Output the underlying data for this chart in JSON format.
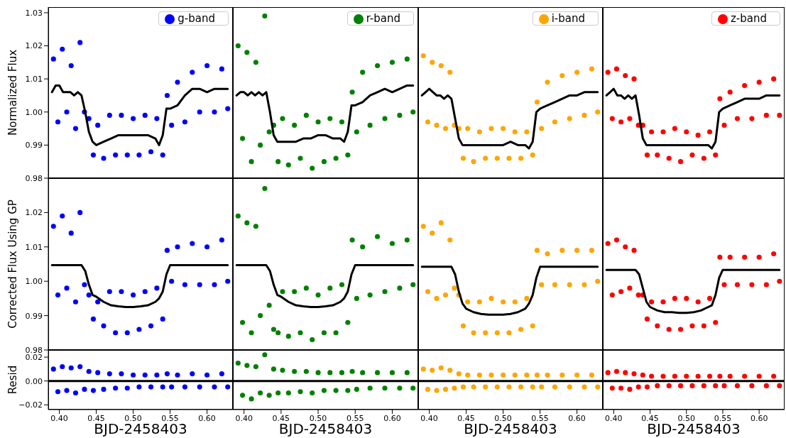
{
  "chart_data": [
    {
      "type": "scatter",
      "ylabel": "Normalized Flux",
      "xlim": [
        0.385,
        0.635
      ],
      "xticks": [
        {
          "value": 0.4,
          "label": null
        },
        {
          "value": 0.45,
          "label": null
        },
        {
          "value": 0.5,
          "label": null
        },
        {
          "value": 0.55,
          "label": null
        },
        {
          "value": 0.6,
          "label": null
        }
      ],
      "ylim": [
        0.98,
        1.0317
      ],
      "yticks": [
        0.98,
        0.99,
        {
          "value": 1,
          "label": "1.00"
        },
        1.01,
        1.02,
        1.03
      ],
      "tick_labels": "y",
      "legend": "top right",
      "marker": "circle",
      "series": [
        {
          "name": "g-band",
          "color": "#0000ff",
          "x": [
            0.392,
            0.398,
            0.404,
            0.41,
            0.416,
            0.422,
            0.428,
            0.434,
            0.44,
            0.446,
            0.452,
            0.46,
            0.468,
            0.476,
            0.484,
            0.492,
            0.5,
            0.508,
            0.516,
            0.524,
            0.532,
            0.54,
            0.546,
            0.552,
            0.56,
            0.57,
            0.58,
            0.59,
            0.6,
            0.61,
            0.62,
            0.628
          ],
          "values": [
            1.016,
            0.997,
            1.019,
            1.0,
            1.014,
            0.995,
            1.021,
            1.0,
            0.998,
            0.987,
            0.996,
            0.986,
            0.999,
            0.987,
            0.999,
            0.987,
            0.998,
            0.987,
            0.999,
            0.988,
            0.998,
            0.987,
            1.005,
            0.996,
            1.009,
            0.997,
            1.012,
            1.0,
            1.014,
            1.0,
            1.013,
            1.001
          ]
        },
        {
          "type": "line",
          "marker": "none",
          "color": "#000000",
          "x": [
            0.39,
            0.395,
            0.4,
            0.405,
            0.41,
            0.415,
            0.42,
            0.425,
            0.43,
            0.435,
            0.44,
            0.445,
            0.45,
            0.46,
            0.47,
            0.48,
            0.49,
            0.5,
            0.51,
            0.52,
            0.53,
            0.535,
            0.54,
            0.545,
            0.55,
            0.56,
            0.57,
            0.58,
            0.59,
            0.6,
            0.61,
            0.62,
            0.628
          ],
          "values": [
            1.006,
            1.008,
            1.008,
            1.006,
            1.006,
            1.006,
            1.005,
            1.006,
            1.005,
            1.0,
            0.994,
            0.991,
            0.99,
            0.991,
            0.992,
            0.993,
            0.993,
            0.993,
            0.993,
            0.993,
            0.992,
            0.99,
            0.993,
            1.001,
            1.001,
            1.002,
            1.005,
            1.007,
            1.007,
            1.006,
            1.007,
            1.007,
            1.007
          ]
        }
      ]
    },
    {
      "type": "scatter",
      "xlim": [
        0.385,
        0.635
      ],
      "xticks": [
        {
          "value": 0.4,
          "label": null
        },
        {
          "value": 0.45,
          "label": null
        },
        {
          "value": 0.5,
          "label": null
        },
        {
          "value": 0.55,
          "label": null
        },
        {
          "value": 0.6,
          "label": null
        }
      ],
      "ylim": [
        0.98,
        1.0317
      ],
      "yticks": [
        {
          "value": 0.98,
          "label": null
        },
        {
          "value": 0.99,
          "label": null
        },
        {
          "value": 1,
          "label": null
        },
        {
          "value": 1.01,
          "label": null
        },
        {
          "value": 1.02,
          "label": null
        },
        {
          "value": 1.03,
          "label": null
        }
      ],
      "tick_labels": false,
      "legend": "top right",
      "marker": "circle",
      "series": [
        {
          "name": "r-band",
          "color": "#008000",
          "x": [
            0.392,
            0.398,
            0.404,
            0.41,
            0.416,
            0.422,
            0.428,
            0.434,
            0.44,
            0.446,
            0.452,
            0.46,
            0.468,
            0.476,
            0.484,
            0.492,
            0.5,
            0.508,
            0.516,
            0.524,
            0.532,
            0.54,
            0.546,
            0.552,
            0.56,
            0.57,
            0.58,
            0.59,
            0.6,
            0.61,
            0.62,
            0.628
          ],
          "values": [
            1.02,
            0.992,
            1.018,
            0.985,
            1.015,
            0.99,
            1.029,
            0.994,
            0.996,
            0.985,
            0.998,
            0.984,
            0.996,
            0.986,
            0.999,
            0.983,
            0.997,
            0.985,
            0.998,
            0.986,
            0.997,
            0.987,
            1.006,
            0.994,
            1.012,
            0.996,
            1.014,
            0.998,
            1.015,
            0.999,
            1.016,
            1.0
          ]
        },
        {
          "type": "line",
          "marker": "none",
          "color": "#000000",
          "x": [
            0.39,
            0.395,
            0.4,
            0.405,
            0.41,
            0.415,
            0.42,
            0.425,
            0.43,
            0.435,
            0.44,
            0.445,
            0.45,
            0.46,
            0.47,
            0.48,
            0.49,
            0.5,
            0.51,
            0.52,
            0.53,
            0.535,
            0.54,
            0.545,
            0.55,
            0.56,
            0.57,
            0.58,
            0.59,
            0.6,
            0.61,
            0.62,
            0.628
          ],
          "values": [
            1.005,
            1.006,
            1.006,
            1.005,
            1.006,
            1.005,
            1.006,
            1.005,
            1.006,
            1.0,
            0.993,
            0.991,
            0.991,
            0.991,
            0.991,
            0.992,
            0.992,
            0.993,
            0.993,
            0.992,
            0.992,
            0.991,
            0.994,
            1.002,
            1.002,
            1.003,
            1.005,
            1.006,
            1.007,
            1.006,
            1.007,
            1.008,
            1.008
          ]
        }
      ]
    },
    {
      "type": "scatter",
      "xlim": [
        0.385,
        0.635
      ],
      "xticks": [
        {
          "value": 0.4,
          "label": null
        },
        {
          "value": 0.45,
          "label": null
        },
        {
          "value": 0.5,
          "label": null
        },
        {
          "value": 0.55,
          "label": null
        },
        {
          "value": 0.6,
          "label": null
        }
      ],
      "ylim": [
        0.98,
        1.0317
      ],
      "yticks": [
        {
          "value": 0.98,
          "label": null
        },
        {
          "value": 0.99,
          "label": null
        },
        {
          "value": 1,
          "label": null
        },
        {
          "value": 1.01,
          "label": null
        },
        {
          "value": 1.02,
          "label": null
        },
        {
          "value": 1.03,
          "label": null
        }
      ],
      "tick_labels": false,
      "legend": "top right",
      "marker": "circle",
      "series": [
        {
          "name": "i-band",
          "color": "#ffa500",
          "x": [
            0.392,
            0.398,
            0.404,
            0.41,
            0.416,
            0.422,
            0.428,
            0.434,
            0.44,
            0.446,
            0.452,
            0.46,
            0.468,
            0.476,
            0.484,
            0.492,
            0.5,
            0.508,
            0.516,
            0.524,
            0.532,
            0.54,
            0.546,
            0.552,
            0.56,
            0.57,
            0.58,
            0.59,
            0.6,
            0.61,
            0.62,
            0.628
          ],
          "values": [
            1.017,
            0.997,
            1.015,
            0.996,
            1.014,
            0.995,
            1.012,
            0.996,
            0.995,
            0.986,
            0.995,
            0.985,
            0.994,
            0.986,
            0.995,
            0.986,
            0.995,
            0.986,
            0.994,
            0.986,
            0.994,
            0.987,
            1.003,
            0.995,
            1.009,
            0.997,
            1.011,
            0.998,
            1.012,
            0.999,
            1.013,
            1.0
          ]
        },
        {
          "type": "line",
          "marker": "none",
          "color": "#000000",
          "x": [
            0.39,
            0.395,
            0.4,
            0.405,
            0.41,
            0.415,
            0.42,
            0.425,
            0.43,
            0.435,
            0.44,
            0.445,
            0.45,
            0.46,
            0.47,
            0.48,
            0.49,
            0.5,
            0.51,
            0.52,
            0.53,
            0.535,
            0.54,
            0.545,
            0.55,
            0.56,
            0.57,
            0.58,
            0.59,
            0.6,
            0.61,
            0.62,
            0.628
          ],
          "values": [
            1.005,
            1.006,
            1.007,
            1.006,
            1.005,
            1.005,
            1.004,
            1.005,
            1.004,
            0.998,
            0.992,
            0.99,
            0.99,
            0.99,
            0.99,
            0.99,
            0.99,
            0.99,
            0.991,
            0.99,
            0.99,
            0.989,
            0.991,
            1.0,
            1.001,
            1.002,
            1.003,
            1.004,
            1.005,
            1.005,
            1.006,
            1.006,
            1.006
          ]
        }
      ]
    },
    {
      "type": "scatter",
      "xlim": [
        0.385,
        0.635
      ],
      "xticks": [
        {
          "value": 0.4,
          "label": null
        },
        {
          "value": 0.45,
          "label": null
        },
        {
          "value": 0.5,
          "label": null
        },
        {
          "value": 0.55,
          "label": null
        },
        {
          "value": 0.6,
          "label": null
        }
      ],
      "ylim": [
        0.98,
        1.0317
      ],
      "yticks": [
        {
          "value": 0.98,
          "label": null
        },
        {
          "value": 0.99,
          "label": null
        },
        {
          "value": 1,
          "label": null
        },
        {
          "value": 1.01,
          "label": null
        },
        {
          "value": 1.02,
          "label": null
        },
        {
          "value": 1.03,
          "label": null
        }
      ],
      "tick_labels": false,
      "legend": "top right",
      "marker": "circle",
      "series": [
        {
          "name": "z-band",
          "color": "#ff0000",
          "x": [
            0.392,
            0.398,
            0.404,
            0.41,
            0.416,
            0.422,
            0.428,
            0.434,
            0.44,
            0.446,
            0.452,
            0.46,
            0.468,
            0.476,
            0.484,
            0.492,
            0.5,
            0.508,
            0.516,
            0.524,
            0.532,
            0.54,
            0.546,
            0.552,
            0.56,
            0.57,
            0.58,
            0.59,
            0.6,
            0.61,
            0.62,
            0.628
          ],
          "values": [
            1.012,
            0.998,
            1.013,
            0.997,
            1.011,
            0.998,
            1.01,
            0.996,
            0.996,
            0.987,
            0.994,
            0.987,
            0.994,
            0.986,
            0.995,
            0.985,
            0.994,
            0.987,
            0.993,
            0.986,
            0.994,
            0.987,
            1.004,
            0.996,
            1.006,
            0.998,
            1.008,
            0.998,
            1.009,
            0.999,
            1.01,
            0.999
          ]
        },
        {
          "type": "line",
          "marker": "none",
          "color": "#000000",
          "x": [
            0.39,
            0.395,
            0.4,
            0.405,
            0.41,
            0.415,
            0.42,
            0.425,
            0.43,
            0.435,
            0.44,
            0.445,
            0.45,
            0.46,
            0.47,
            0.48,
            0.49,
            0.5,
            0.51,
            0.52,
            0.53,
            0.535,
            0.54,
            0.545,
            0.55,
            0.56,
            0.57,
            0.58,
            0.59,
            0.6,
            0.61,
            0.62,
            0.628
          ],
          "values": [
            1.005,
            1.006,
            1.007,
            1.005,
            1.005,
            1.004,
            1.005,
            1.004,
            1.005,
            0.999,
            0.992,
            0.99,
            0.99,
            0.99,
            0.99,
            0.99,
            0.99,
            0.99,
            0.99,
            0.99,
            0.99,
            0.989,
            0.991,
            1.0,
            1.001,
            1.002,
            1.003,
            1.004,
            1.004,
            1.004,
            1.005,
            1.005,
            1.005
          ]
        }
      ]
    },
    {
      "type": "scatter",
      "ylabel": "Corrected Flux Using GP",
      "xlim": [
        0.385,
        0.635
      ],
      "xticks": [
        {
          "value": 0.4,
          "label": null
        },
        {
          "value": 0.45,
          "label": null
        },
        {
          "value": 0.5,
          "label": null
        },
        {
          "value": 0.55,
          "label": null
        },
        {
          "value": 0.6,
          "label": null
        }
      ],
      "ylim": [
        0.98,
        1.03
      ],
      "yticks": [
        0.98,
        0.99,
        {
          "value": 1,
          "label": "1.00"
        },
        1.01,
        1.02
      ],
      "tick_labels": "y",
      "marker": "circle",
      "series": [
        {
          "color": "#0000ff",
          "x": [
            0.392,
            0.398,
            0.404,
            0.41,
            0.416,
            0.422,
            0.428,
            0.434,
            0.44,
            0.446,
            0.452,
            0.46,
            0.468,
            0.476,
            0.484,
            0.492,
            0.5,
            0.508,
            0.516,
            0.524,
            0.532,
            0.54,
            0.546,
            0.552,
            0.56,
            0.57,
            0.58,
            0.59,
            0.6,
            0.61,
            0.62,
            0.628
          ],
          "values": [
            1.016,
            0.996,
            1.019,
            0.998,
            1.014,
            0.994,
            1.02,
            0.999,
            0.996,
            0.989,
            0.994,
            0.987,
            0.997,
            0.985,
            0.997,
            0.985,
            0.996,
            0.986,
            0.997,
            0.987,
            0.998,
            0.989,
            1.009,
            1.0,
            1.01,
            0.999,
            1.011,
            0.999,
            1.01,
            0.999,
            1.012,
            1.0
          ]
        },
        {
          "type": "line",
          "marker": "none",
          "color": "#000000",
          "x": [
            0.39,
            0.43,
            0.435,
            0.44,
            0.445,
            0.45,
            0.46,
            0.47,
            0.48,
            0.49,
            0.5,
            0.51,
            0.52,
            0.53,
            0.535,
            0.54,
            0.545,
            0.55,
            0.628
          ],
          "values": [
            1.0047,
            1.0047,
            1.003,
            0.999,
            0.996,
            0.9955,
            0.994,
            0.993,
            0.9927,
            0.9925,
            0.9925,
            0.9927,
            0.993,
            0.994,
            0.995,
            0.997,
            1.002,
            1.0047,
            1.0047
          ]
        }
      ]
    },
    {
      "type": "scatter",
      "xlim": [
        0.385,
        0.635
      ],
      "xticks": [
        {
          "value": 0.4,
          "label": null
        },
        {
          "value": 0.45,
          "label": null
        },
        {
          "value": 0.5,
          "label": null
        },
        {
          "value": 0.55,
          "label": null
        },
        {
          "value": 0.6,
          "label": null
        }
      ],
      "ylim": [
        0.98,
        1.03
      ],
      "yticks": [
        {
          "value": 0.98,
          "label": null
        },
        {
          "value": 0.99,
          "label": null
        },
        {
          "value": 1,
          "label": null
        },
        {
          "value": 1.01,
          "label": null
        },
        {
          "value": 1.02,
          "label": null
        }
      ],
      "tick_labels": false,
      "marker": "circle",
      "series": [
        {
          "color": "#008000",
          "x": [
            0.392,
            0.398,
            0.404,
            0.41,
            0.416,
            0.422,
            0.428,
            0.434,
            0.44,
            0.446,
            0.452,
            0.46,
            0.468,
            0.476,
            0.484,
            0.492,
            0.5,
            0.508,
            0.516,
            0.524,
            0.532,
            0.54,
            0.546,
            0.552,
            0.56,
            0.57,
            0.58,
            0.59,
            0.6,
            0.61,
            0.62,
            0.628
          ],
          "values": [
            1.019,
            0.988,
            1.017,
            0.985,
            1.016,
            0.99,
            1.027,
            0.993,
            0.986,
            0.985,
            0.997,
            0.984,
            0.997,
            0.985,
            0.998,
            0.983,
            0.996,
            0.985,
            0.998,
            0.985,
            0.999,
            0.988,
            1.012,
            0.995,
            1.01,
            0.996,
            1.013,
            0.997,
            1.011,
            0.998,
            1.012,
            0.999
          ]
        },
        {
          "type": "line",
          "marker": "none",
          "color": "#000000",
          "x": [
            0.39,
            0.43,
            0.435,
            0.44,
            0.445,
            0.45,
            0.46,
            0.47,
            0.48,
            0.49,
            0.5,
            0.51,
            0.52,
            0.53,
            0.535,
            0.54,
            0.545,
            0.55,
            0.628
          ],
          "values": [
            1.0047,
            1.0047,
            1.003,
            0.999,
            0.996,
            0.9955,
            0.994,
            0.993,
            0.9927,
            0.9925,
            0.9925,
            0.9927,
            0.993,
            0.994,
            0.995,
            0.997,
            1.002,
            1.0047,
            1.0047
          ]
        }
      ]
    },
    {
      "type": "scatter",
      "xlim": [
        0.385,
        0.635
      ],
      "xticks": [
        {
          "value": 0.4,
          "label": null
        },
        {
          "value": 0.45,
          "label": null
        },
        {
          "value": 0.5,
          "label": null
        },
        {
          "value": 0.55,
          "label": null
        },
        {
          "value": 0.6,
          "label": null
        }
      ],
      "ylim": [
        0.98,
        1.03
      ],
      "yticks": [
        {
          "value": 0.98,
          "label": null
        },
        {
          "value": 0.99,
          "label": null
        },
        {
          "value": 1,
          "label": null
        },
        {
          "value": 1.01,
          "label": null
        },
        {
          "value": 1.02,
          "label": null
        }
      ],
      "tick_labels": false,
      "marker": "circle",
      "series": [
        {
          "color": "#ffa500",
          "x": [
            0.392,
            0.398,
            0.404,
            0.41,
            0.416,
            0.422,
            0.428,
            0.434,
            0.44,
            0.446,
            0.452,
            0.46,
            0.468,
            0.476,
            0.484,
            0.492,
            0.5,
            0.508,
            0.516,
            0.524,
            0.532,
            0.54,
            0.546,
            0.552,
            0.56,
            0.57,
            0.58,
            0.59,
            0.6,
            0.61,
            0.62,
            0.628
          ],
          "values": [
            1.016,
            0.997,
            1.014,
            0.995,
            1.017,
            0.996,
            1.012,
            0.998,
            0.996,
            0.987,
            0.994,
            0.985,
            0.994,
            0.985,
            0.995,
            0.985,
            0.994,
            0.985,
            0.994,
            0.986,
            0.995,
            0.987,
            1.009,
            0.999,
            1.008,
            0.999,
            1.009,
            0.999,
            1.009,
            0.999,
            1.009,
            1.0
          ]
        },
        {
          "type": "line",
          "marker": "none",
          "color": "#000000",
          "x": [
            0.39,
            0.43,
            0.435,
            0.44,
            0.445,
            0.45,
            0.46,
            0.47,
            0.48,
            0.49,
            0.5,
            0.51,
            0.52,
            0.53,
            0.535,
            0.54,
            0.545,
            0.55,
            0.628
          ],
          "values": [
            1.0042,
            1.0042,
            1.002,
            0.997,
            0.9935,
            0.992,
            0.991,
            0.9905,
            0.9903,
            0.9903,
            0.9903,
            0.9905,
            0.991,
            0.992,
            0.9935,
            0.996,
            1.001,
            1.0042,
            1.0042
          ]
        }
      ]
    },
    {
      "type": "scatter",
      "xlim": [
        0.385,
        0.635
      ],
      "xticks": [
        {
          "value": 0.4,
          "label": null
        },
        {
          "value": 0.45,
          "label": null
        },
        {
          "value": 0.5,
          "label": null
        },
        {
          "value": 0.55,
          "label": null
        },
        {
          "value": 0.6,
          "label": null
        }
      ],
      "ylim": [
        0.98,
        1.03
      ],
      "yticks": [
        {
          "value": 0.98,
          "label": null
        },
        {
          "value": 0.99,
          "label": null
        },
        {
          "value": 1,
          "label": null
        },
        {
          "value": 1.01,
          "label": null
        },
        {
          "value": 1.02,
          "label": null
        }
      ],
      "tick_labels": false,
      "marker": "circle",
      "series": [
        {
          "color": "#ff0000",
          "x": [
            0.392,
            0.398,
            0.404,
            0.41,
            0.416,
            0.422,
            0.428,
            0.434,
            0.44,
            0.446,
            0.452,
            0.46,
            0.468,
            0.476,
            0.484,
            0.492,
            0.5,
            0.508,
            0.516,
            0.524,
            0.532,
            0.54,
            0.546,
            0.552,
            0.56,
            0.57,
            0.58,
            0.59,
            0.6,
            0.61,
            0.62,
            0.628
          ],
          "values": [
            1.011,
            0.996,
            1.012,
            0.997,
            1.01,
            0.998,
            1.009,
            0.996,
            0.996,
            0.989,
            0.994,
            0.987,
            0.994,
            0.986,
            0.995,
            0.986,
            0.995,
            0.987,
            0.994,
            0.987,
            0.995,
            0.988,
            1.007,
            0.999,
            1.007,
            0.999,
            1.007,
            0.999,
            1.007,
            0.999,
            1.008,
            1.0
          ]
        },
        {
          "type": "line",
          "marker": "none",
          "color": "#000000",
          "x": [
            0.39,
            0.43,
            0.435,
            0.44,
            0.445,
            0.45,
            0.46,
            0.47,
            0.48,
            0.49,
            0.5,
            0.51,
            0.52,
            0.53,
            0.535,
            0.54,
            0.545,
            0.55,
            0.628
          ],
          "values": [
            1.0033,
            1.0033,
            1.002,
            0.998,
            0.994,
            0.9925,
            0.9915,
            0.991,
            0.991,
            0.9908,
            0.9908,
            0.991,
            0.9915,
            0.9925,
            0.993,
            0.996,
            1.001,
            1.0033,
            1.0033
          ]
        }
      ]
    },
    {
      "type": "scatter",
      "ylabel": "Resid",
      "xlabel": "BJD-2458403",
      "xlim": [
        0.385,
        0.635
      ],
      "xticks": [
        {
          "value": 0.4,
          "label": "0.40"
        },
        {
          "value": 0.45,
          "label": "0.45"
        },
        {
          "value": 0.5,
          "label": "0.50"
        },
        {
          "value": 0.55,
          "label": "0.55"
        },
        {
          "value": 0.6,
          "label": "0.60"
        }
      ],
      "ylim": [
        -0.024,
        0.026
      ],
      "yticks": [
        {
          "value": -0.02,
          "label": "−0.02"
        },
        {
          "value": 0,
          "label": "0.00"
        },
        0.02
      ],
      "marker": "circle",
      "ref_lines": [
        {
          "axis": "y",
          "value": 0,
          "color": "#000000"
        }
      ],
      "series": [
        {
          "color": "#0000ff",
          "x": [
            0.392,
            0.398,
            0.404,
            0.41,
            0.416,
            0.422,
            0.428,
            0.434,
            0.44,
            0.446,
            0.452,
            0.46,
            0.468,
            0.476,
            0.484,
            0.492,
            0.5,
            0.508,
            0.516,
            0.524,
            0.532,
            0.54,
            0.546,
            0.552,
            0.56,
            0.57,
            0.58,
            0.59,
            0.6,
            0.61,
            0.62,
            0.628
          ],
          "values": [
            0.01,
            -0.009,
            0.012,
            -0.008,
            0.011,
            -0.01,
            0.012,
            -0.007,
            0.008,
            -0.008,
            0.007,
            -0.007,
            0.006,
            -0.006,
            0.006,
            -0.006,
            0.005,
            -0.005,
            0.005,
            -0.005,
            0.005,
            -0.005,
            0.006,
            -0.005,
            0.005,
            -0.005,
            0.006,
            -0.005,
            0.005,
            -0.005,
            0.006,
            -0.005
          ]
        }
      ]
    },
    {
      "type": "scatter",
      "xlabel": "BJD-2458403",
      "xlim": [
        0.385,
        0.635
      ],
      "xticks": [
        {
          "value": 0.4,
          "label": "0.40"
        },
        {
          "value": 0.45,
          "label": "0.45"
        },
        {
          "value": 0.5,
          "label": "0.50"
        },
        {
          "value": 0.55,
          "label": "0.55"
        },
        {
          "value": 0.6,
          "label": "0.60"
        }
      ],
      "ylim": [
        -0.024,
        0.026
      ],
      "yticks": [
        {
          "value": -0.02,
          "label": null
        },
        {
          "value": 0,
          "label": null
        },
        {
          "value": 0.02,
          "label": null
        }
      ],
      "tick_labels": "x",
      "marker": "circle",
      "ref_lines": [
        {
          "axis": "y",
          "value": 0,
          "color": "#000000"
        }
      ],
      "series": [
        {
          "color": "#008000",
          "x": [
            0.392,
            0.398,
            0.404,
            0.41,
            0.416,
            0.422,
            0.428,
            0.434,
            0.44,
            0.446,
            0.452,
            0.46,
            0.468,
            0.476,
            0.484,
            0.492,
            0.5,
            0.508,
            0.516,
            0.524,
            0.532,
            0.54,
            0.546,
            0.552,
            0.56,
            0.57,
            0.58,
            0.59,
            0.6,
            0.61,
            0.62,
            0.628
          ],
          "values": [
            0.015,
            -0.012,
            0.013,
            -0.015,
            0.012,
            -0.01,
            0.022,
            -0.012,
            0.01,
            -0.01,
            0.009,
            -0.01,
            0.008,
            -0.009,
            0.008,
            -0.01,
            0.007,
            -0.008,
            0.007,
            -0.008,
            0.007,
            -0.008,
            0.008,
            -0.007,
            0.007,
            -0.006,
            0.007,
            -0.006,
            0.007,
            -0.006,
            0.007,
            -0.006
          ]
        }
      ]
    },
    {
      "type": "scatter",
      "xlabel": "BJD-2458403",
      "xlim": [
        0.385,
        0.635
      ],
      "xticks": [
        {
          "value": 0.4,
          "label": "0.40"
        },
        {
          "value": 0.45,
          "label": "0.45"
        },
        {
          "value": 0.5,
          "label": "0.50"
        },
        {
          "value": 0.55,
          "label": "0.55"
        },
        {
          "value": 0.6,
          "label": "0.60"
        }
      ],
      "ylim": [
        -0.024,
        0.026
      ],
      "yticks": [
        {
          "value": -0.02,
          "label": null
        },
        {
          "value": 0,
          "label": null
        },
        {
          "value": 0.02,
          "label": null
        }
      ],
      "tick_labels": "x",
      "marker": "circle",
      "ref_lines": [
        {
          "axis": "y",
          "value": 0,
          "color": "#000000"
        }
      ],
      "series": [
        {
          "color": "#ffa500",
          "x": [
            0.392,
            0.398,
            0.404,
            0.41,
            0.416,
            0.422,
            0.428,
            0.434,
            0.44,
            0.446,
            0.452,
            0.46,
            0.468,
            0.476,
            0.484,
            0.492,
            0.5,
            0.508,
            0.516,
            0.524,
            0.532,
            0.54,
            0.546,
            0.552,
            0.56,
            0.57,
            0.58,
            0.59,
            0.6,
            0.61,
            0.62,
            0.628
          ],
          "values": [
            0.01,
            -0.007,
            0.009,
            -0.008,
            0.011,
            -0.007,
            0.009,
            -0.006,
            0.006,
            -0.005,
            0.005,
            -0.005,
            0.005,
            -0.005,
            0.005,
            -0.005,
            0.005,
            -0.005,
            0.005,
            -0.005,
            0.005,
            -0.005,
            0.005,
            -0.005,
            0.005,
            -0.005,
            0.005,
            -0.005,
            0.005,
            -0.005,
            0.005,
            -0.005
          ]
        }
      ]
    },
    {
      "type": "scatter",
      "xlabel": "BJD-2458403",
      "xlim": [
        0.385,
        0.635
      ],
      "xticks": [
        {
          "value": 0.4,
          "label": "0.40"
        },
        {
          "value": 0.45,
          "label": "0.45"
        },
        {
          "value": 0.5,
          "label": "0.50"
        },
        {
          "value": 0.55,
          "label": "0.55"
        },
        {
          "value": 0.6,
          "label": "0.60"
        }
      ],
      "ylim": [
        -0.024,
        0.026
      ],
      "yticks": [
        {
          "value": -0.02,
          "label": null
        },
        {
          "value": 0,
          "label": null
        },
        {
          "value": 0.02,
          "label": null
        }
      ],
      "tick_labels": "x",
      "marker": "circle",
      "ref_lines": [
        {
          "axis": "y",
          "value": 0,
          "color": "#000000"
        }
      ],
      "series": [
        {
          "color": "#ff0000",
          "x": [
            0.392,
            0.398,
            0.404,
            0.41,
            0.416,
            0.422,
            0.428,
            0.434,
            0.44,
            0.446,
            0.452,
            0.46,
            0.468,
            0.476,
            0.484,
            0.492,
            0.5,
            0.508,
            0.516,
            0.524,
            0.532,
            0.54,
            0.546,
            0.552,
            0.56,
            0.57,
            0.58,
            0.59,
            0.6,
            0.61,
            0.62,
            0.628
          ],
          "values": [
            0.007,
            -0.006,
            0.008,
            -0.006,
            0.007,
            -0.007,
            0.006,
            -0.005,
            0.005,
            -0.005,
            0.004,
            -0.004,
            0.004,
            -0.004,
            0.004,
            -0.004,
            0.004,
            -0.004,
            0.004,
            -0.004,
            0.004,
            -0.004,
            0.004,
            -0.004,
            0.004,
            -0.004,
            0.004,
            -0.004,
            0.004,
            -0.004,
            0.004,
            -0.004
          ]
        }
      ]
    }
  ]
}
